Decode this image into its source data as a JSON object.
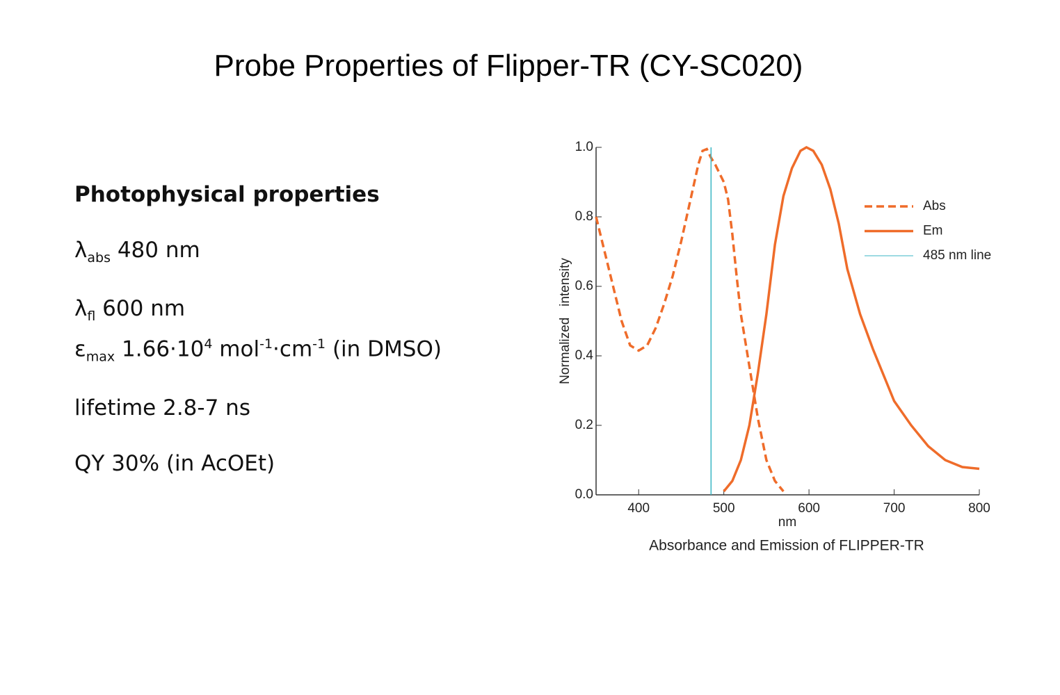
{
  "title": "Probe Properties of Flipper-TR (CY-SC020)",
  "properties": {
    "heading": "Photophysical properties",
    "items": [
      [
        {
          "text": "λ"
        },
        {
          "sub": "abs"
        },
        {
          "text": " 480 nm"
        }
      ],
      [
        {
          "text": "λ"
        },
        {
          "sub": "fl"
        },
        {
          "text": " 600 nm"
        }
      ],
      [
        {
          "text": "ε"
        },
        {
          "sub": "max"
        },
        {
          "text": " 1.66·10"
        },
        {
          "sup": "4"
        },
        {
          "text": " mol"
        },
        {
          "sup": "-1"
        },
        {
          "text": "·cm"
        },
        {
          "sup": "-1"
        },
        {
          "text": " (in DMSO)"
        }
      ],
      [
        {
          "text": "lifetime 2.8-7 ns"
        }
      ],
      [
        {
          "text": "QY 30% (in AcOEt)"
        }
      ]
    ]
  },
  "chart_data": {
    "type": "line",
    "caption": "Absorbance and Emission of FLIPPER-TR",
    "xlabel": "nm",
    "ylabel": "Normalized   intensity",
    "xlim": [
      350,
      800
    ],
    "xticks": [
      400,
      500,
      600,
      700,
      800
    ],
    "ylim": [
      0,
      1
    ],
    "yticks": [
      {
        "value": 0,
        "label": "0.0"
      },
      0.2,
      0.4,
      0.6,
      0.8,
      {
        "value": 1,
        "label": "1.0"
      }
    ],
    "legend": "upper right",
    "series": [
      {
        "name": "Abs",
        "color": "#ef6c2a",
        "dash": true,
        "x": [
          350,
          360,
          370,
          380,
          390,
          400,
          410,
          420,
          430,
          440,
          450,
          460,
          470,
          475,
          480,
          485,
          490,
          500,
          505,
          510,
          515,
          520,
          530,
          540,
          550,
          560,
          570
        ],
        "values": [
          0.8,
          0.7,
          0.6,
          0.5,
          0.43,
          0.415,
          0.43,
          0.48,
          0.55,
          0.63,
          0.73,
          0.84,
          0.95,
          0.99,
          0.995,
          0.97,
          0.95,
          0.9,
          0.85,
          0.75,
          0.63,
          0.52,
          0.37,
          0.22,
          0.1,
          0.04,
          0.01
        ]
      },
      {
        "name": "Em",
        "color": "#ef6c2a",
        "dash": false,
        "x": [
          500,
          510,
          520,
          530,
          540,
          550,
          560,
          570,
          580,
          590,
          597,
          605,
          615,
          625,
          635,
          645,
          660,
          675,
          690,
          700,
          720,
          740,
          760,
          780,
          800
        ],
        "values": [
          0.01,
          0.04,
          0.1,
          0.2,
          0.35,
          0.52,
          0.72,
          0.86,
          0.94,
          0.99,
          1.0,
          0.99,
          0.95,
          0.88,
          0.78,
          0.65,
          0.52,
          0.42,
          0.33,
          0.27,
          0.2,
          0.14,
          0.1,
          0.08,
          0.075
        ]
      },
      {
        "name": "485 nm line",
        "color": "#3bb6c4",
        "dash": false,
        "thin": true,
        "x": [
          485,
          485
        ],
        "values": [
          0,
          1
        ]
      }
    ]
  }
}
